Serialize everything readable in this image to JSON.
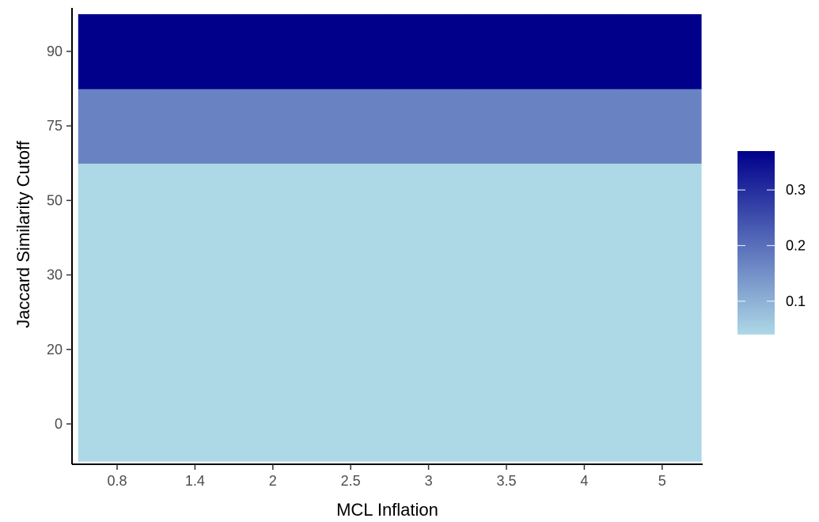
{
  "chart_data": {
    "type": "heatmap",
    "title": "",
    "xlabel": "MCL Inflation",
    "ylabel": "Jaccard Similarity Cutoff",
    "x_categories": [
      "0.8",
      "1.4",
      "2",
      "2.5",
      "3",
      "3.5",
      "4",
      "5"
    ],
    "y_categories": [
      "0",
      "20",
      "30",
      "50",
      "75",
      "90"
    ],
    "values": {
      "0": [
        0.04,
        0.04,
        0.04,
        0.04,
        0.04,
        0.04,
        0.04,
        0.04
      ],
      "20": [
        0.04,
        0.04,
        0.04,
        0.04,
        0.04,
        0.04,
        0.04,
        0.04
      ],
      "30": [
        0.04,
        0.04,
        0.04,
        0.04,
        0.04,
        0.04,
        0.04,
        0.04
      ],
      "50": [
        0.04,
        0.04,
        0.04,
        0.04,
        0.04,
        0.04,
        0.04,
        0.04
      ],
      "75": [
        0.17,
        0.17,
        0.17,
        0.17,
        0.17,
        0.17,
        0.17,
        0.17
      ],
      "90": [
        0.37,
        0.37,
        0.37,
        0.37,
        0.37,
        0.37,
        0.37,
        0.37
      ]
    },
    "legend": {
      "position": "right",
      "ticks": [
        0.1,
        0.2,
        0.3
      ],
      "tick_labels": [
        "0.1",
        "0.2",
        "0.3"
      ],
      "range": [
        0.04,
        0.37
      ],
      "low_color": "#add8e6",
      "high_color": "#00008b"
    },
    "grid": false
  }
}
